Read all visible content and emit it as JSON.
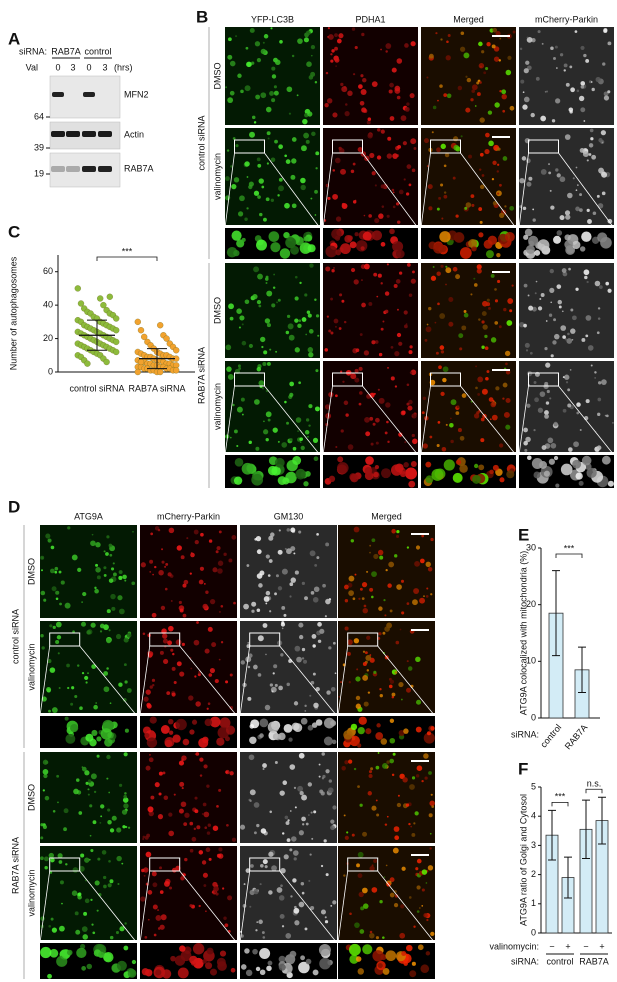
{
  "panel_labels": [
    "A",
    "B",
    "C",
    "D",
    "E",
    "F"
  ],
  "blot": {
    "sirna_label": "siRNA:",
    "groups": [
      "RAB7A",
      "control"
    ],
    "time_label": "Val",
    "times": [
      0,
      3,
      0,
      3
    ],
    "unit": "(hrs)",
    "proteins": [
      "MFN2",
      "Actin",
      "RAB7A"
    ],
    "markers": [
      64,
      39,
      19
    ]
  },
  "panel_b": {
    "columns": [
      "YFP-LC3B",
      "PDHA1",
      "Merged",
      "mCherry-Parkin"
    ],
    "groups": [
      "control siRNA",
      "RAB7A siRNA"
    ],
    "rows": [
      "DMSO",
      "valinomycin",
      "DMSO",
      "valinomycin"
    ]
  },
  "panel_d": {
    "columns": [
      "ATG9A",
      "mCherry-Parkin",
      "GM130",
      "Merged"
    ],
    "groups": [
      "control siRNA",
      "RAB7A siRNA"
    ],
    "rows": [
      "DMSO",
      "valinomycin",
      "DMSO",
      "valinomycin"
    ]
  },
  "chart_data": [
    {
      "type": "strip",
      "ylabel": "Number of autophagosomes",
      "categories": [
        "control siRNA",
        "RAB7A siRNA"
      ],
      "values": [
        [
          50,
          44,
          41,
          40,
          38,
          37,
          36,
          35,
          35,
          34,
          33,
          32,
          32,
          31,
          30,
          30,
          29,
          28,
          28,
          27,
          27,
          26,
          26,
          25,
          25,
          24,
          24,
          23,
          23,
          22,
          22,
          21,
          21,
          20,
          20,
          19,
          19,
          18,
          18,
          17,
          17,
          16,
          16,
          15,
          15,
          14,
          14,
          13,
          13,
          12,
          12,
          11,
          10,
          10,
          9,
          8,
          7,
          6,
          5,
          45
        ],
        [
          30,
          28,
          25,
          22,
          21,
          20,
          18,
          17,
          16,
          15,
          14,
          13,
          12,
          12,
          11,
          11,
          10,
          10,
          10,
          9,
          9,
          9,
          8,
          8,
          8,
          7,
          7,
          7,
          6,
          6,
          6,
          5,
          5,
          5,
          5,
          4,
          4,
          4,
          4,
          3,
          3,
          3,
          3,
          2,
          2,
          2,
          2,
          1,
          1,
          1,
          1,
          0,
          0,
          0,
          6
        ]
      ],
      "colors": [
        "#8dbb3c",
        "#f2a22e"
      ],
      "mean": [
        22,
        8
      ],
      "sd": [
        9,
        6
      ],
      "ylim": [
        0,
        70
      ],
      "yticks": [
        0,
        20,
        40,
        60
      ],
      "significance": "***"
    },
    {
      "type": "bar",
      "ylabel": "ATG9A colocalized with mitochondria (%)",
      "xlabel": "siRNA:",
      "categories": [
        "control",
        "RAB7A"
      ],
      "values": [
        18.5,
        8.5
      ],
      "errors": [
        7.5,
        4
      ],
      "color": "#d3ecf6",
      "ylim": [
        0,
        30
      ],
      "yticks": [
        0,
        10,
        20,
        30
      ],
      "significance": [
        "***"
      ]
    },
    {
      "type": "bar",
      "ylabel": "ATG9A ratio of Golgi and Cytosol",
      "treatment_label": "valinomycin:",
      "categories": [
        "−",
        "+",
        "−",
        "+"
      ],
      "xlabel": "siRNA:",
      "groups": [
        "control",
        "RAB7A"
      ],
      "values": [
        3.35,
        1.9,
        3.55,
        3.85
      ],
      "errors": [
        0.85,
        0.7,
        1.0,
        0.8
      ],
      "color": "#d3ecf6",
      "ylim": [
        0,
        5
      ],
      "yticks": [
        0,
        1,
        2,
        3,
        4,
        5
      ],
      "significance": [
        "***",
        "n.s."
      ]
    }
  ]
}
